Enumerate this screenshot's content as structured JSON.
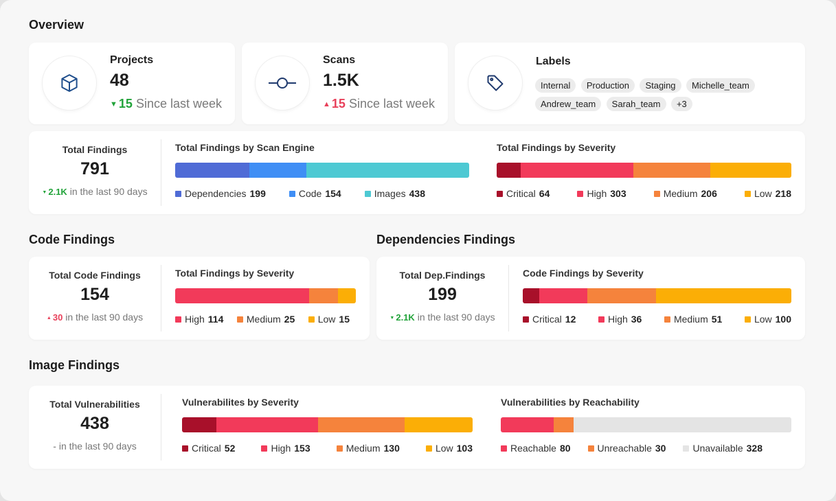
{
  "overview": {
    "title": "Overview",
    "projects": {
      "label": "Projects",
      "value": "48",
      "delta": "15",
      "delta_text": "Since last week",
      "icon": "cube-icon"
    },
    "scans": {
      "label": "Scans",
      "value": "1.5K",
      "delta": "15",
      "delta_text": "Since last week",
      "icon": "commit-icon"
    },
    "labels": {
      "label": "Labels",
      "icon": "tag-icon",
      "chips": [
        "Internal",
        "Production",
        "Staging",
        "Michelle_team",
        "Andrew_team",
        "Sarah_team",
        "+3"
      ]
    }
  },
  "total_findings": {
    "label": "Total Findings",
    "value": "791",
    "delta": "2.1K",
    "delta_text": "in the last 90 days",
    "by_engine": {
      "title": "Total Findings by Scan Engine",
      "segments": [
        {
          "name": "Dependencies",
          "value": 199,
          "color": "#4f6bd6"
        },
        {
          "name": "Code",
          "value": 154,
          "color": "#3f8ef5"
        },
        {
          "name": "Images",
          "value": 438,
          "color": "#4dc9d3"
        }
      ]
    },
    "by_severity": {
      "title": "Total Findings by Severity",
      "segments": [
        {
          "name": "Critical",
          "value": 64,
          "color": "#a8102a"
        },
        {
          "name": "High",
          "value": 303,
          "color": "#f23a5a"
        },
        {
          "name": "Medium",
          "value": 206,
          "color": "#f5833c"
        },
        {
          "name": "Low",
          "value": 218,
          "color": "#fbae06"
        }
      ]
    }
  },
  "code_findings": {
    "title": "Code Findings",
    "label": "Total Code Findings",
    "value": "154",
    "delta": "30",
    "delta_text": "in the last 90 days",
    "by_severity": {
      "title": "Total Findings by Severity",
      "segments": [
        {
          "name": "High",
          "value": 114,
          "color": "#f23a5a"
        },
        {
          "name": "Medium",
          "value": 25,
          "color": "#f5833c"
        },
        {
          "name": "Low",
          "value": 15,
          "color": "#fbae06"
        }
      ]
    }
  },
  "dependencies_findings": {
    "title": "Dependencies Findings",
    "label": "Total Dep.Findings",
    "value": "199",
    "delta": "2.1K",
    "delta_text": "in the last 90 days",
    "by_severity": {
      "title": "Code Findings by Severity",
      "segments": [
        {
          "name": "Critical",
          "value": 12,
          "color": "#a8102a"
        },
        {
          "name": "High",
          "value": 36,
          "color": "#f23a5a"
        },
        {
          "name": "Medium",
          "value": 51,
          "color": "#f5833c"
        },
        {
          "name": "Low",
          "value": 100,
          "color": "#fbae06"
        }
      ]
    }
  },
  "image_findings": {
    "title": "Image Findings",
    "label": "Total Vulnerabilities",
    "value": "438",
    "delta": "-",
    "delta_text": "in the last 90 days",
    "by_severity": {
      "title": "Vulnerabilites by Severity",
      "segments": [
        {
          "name": "Critical",
          "value": 52,
          "color": "#a8102a"
        },
        {
          "name": "High",
          "value": 153,
          "color": "#f23a5a"
        },
        {
          "name": "Medium",
          "value": 130,
          "color": "#f5833c"
        },
        {
          "name": "Low",
          "value": 103,
          "color": "#fbae06"
        }
      ]
    },
    "by_reachability": {
      "title": "Vulnerabilities by Reachability",
      "segments": [
        {
          "name": "Reachable",
          "value": 80,
          "color": "#f23a5a"
        },
        {
          "name": "Unreachable",
          "value": 30,
          "color": "#f5833c"
        },
        {
          "name": "Unavailable",
          "value": 328,
          "color": "#e4e4e4"
        }
      ]
    }
  }
}
